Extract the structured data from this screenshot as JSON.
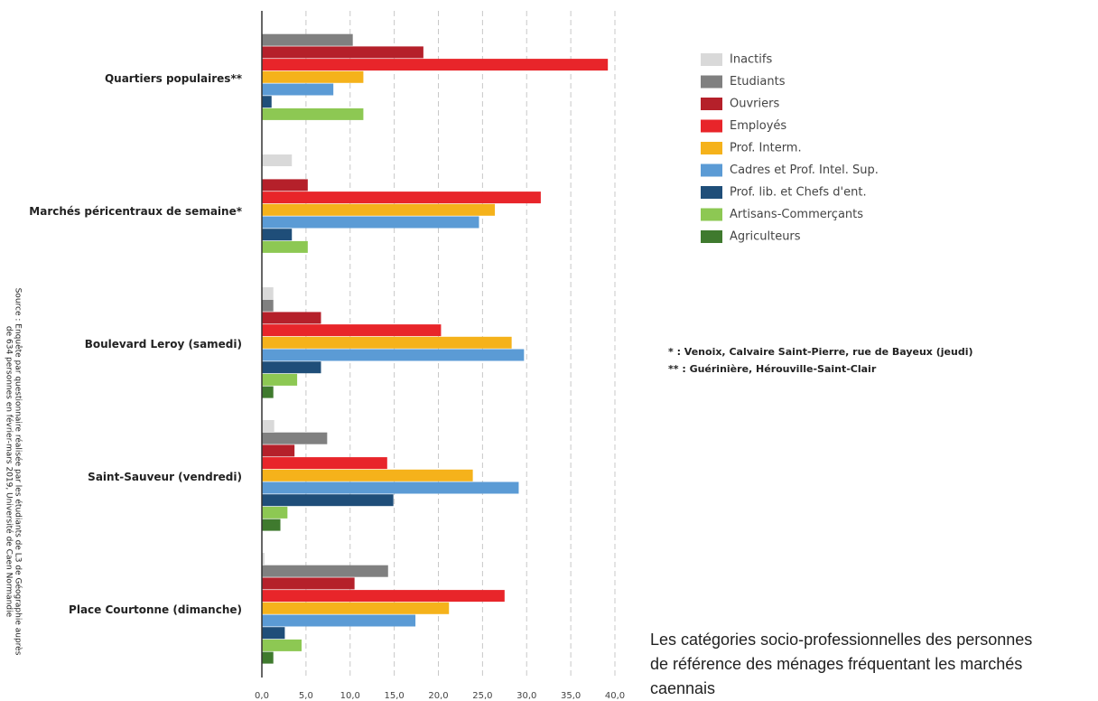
{
  "chart_data": {
    "type": "hbar",
    "categories": [
      "Quartiers populaires**",
      "Marchés péricentraux de semaine*",
      "Boulevard Leroy (samedi)",
      "Saint-Sauveur (vendredi)",
      "Place Courtonne (dimanche)"
    ],
    "series": [
      {
        "name": "Inactifs",
        "color": "#d9d9d9",
        "values": [
          0,
          3.4,
          1.3,
          1.4,
          0.3
        ]
      },
      {
        "name": "Etudiants",
        "color": "#808080",
        "values": [
          10.3,
          0,
          1.3,
          7.4,
          14.3
        ]
      },
      {
        "name": "Ouvriers",
        "color": "#b5202a",
        "values": [
          18.3,
          5.2,
          6.7,
          3.7,
          10.5
        ]
      },
      {
        "name": "Employés",
        "color": "#e8252a",
        "values": [
          39.2,
          31.6,
          20.3,
          14.2,
          27.5
        ]
      },
      {
        "name": "Prof. Interm.",
        "color": "#f5b21b",
        "values": [
          11.5,
          26.4,
          28.3,
          23.9,
          21.2
        ]
      },
      {
        "name": "Cadres et Prof. Intel. Sup.",
        "color": "#5b9bd5",
        "values": [
          8.1,
          24.6,
          29.7,
          29.1,
          17.4
        ]
      },
      {
        "name": "Prof. lib. et Chefs d'ent.",
        "color": "#1f4e79",
        "values": [
          1.1,
          3.4,
          6.7,
          14.9,
          2.6
        ]
      },
      {
        "name": "Artisans-Commerçants",
        "color": "#8dc853",
        "values": [
          11.5,
          5.2,
          4.0,
          2.9,
          4.5
        ]
      },
      {
        "name": "Agriculteurs",
        "color": "#3f7a2e",
        "values": [
          0,
          0,
          1.3,
          2.1,
          1.3
        ]
      }
    ],
    "xlim": [
      0,
      40
    ],
    "xticks": [
      {
        "value": 0,
        "label": "0,0"
      },
      {
        "value": 5,
        "label": "5,0"
      },
      {
        "value": 10,
        "label": "10,0"
      },
      {
        "value": 15,
        "label": "15,0"
      },
      {
        "value": 20,
        "label": "20,0"
      },
      {
        "value": 25,
        "label": "25,0"
      },
      {
        "value": 30,
        "label": "30,0"
      },
      {
        "value": 35,
        "label": "35,0"
      },
      {
        "value": 40,
        "label": "40,0"
      }
    ],
    "grid": true,
    "notes": [
      "* : Venoix, Calvaire Saint-Pierre, rue de Bayeux (jeudi)",
      "** : Guérinière, Hérouville-Saint-Clair"
    ],
    "caption": [
      "Les catégories socio-professionnelles des personnes",
      "de référence des ménages fréquentant les marchés",
      "caennais"
    ],
    "source": [
      "Source : Enquête par questionnaire réalisée par les étudiants de L3 de Géographie auprès",
      "de 634 personnes en février-mars 2019, Université de Caen Normandie"
    ]
  }
}
